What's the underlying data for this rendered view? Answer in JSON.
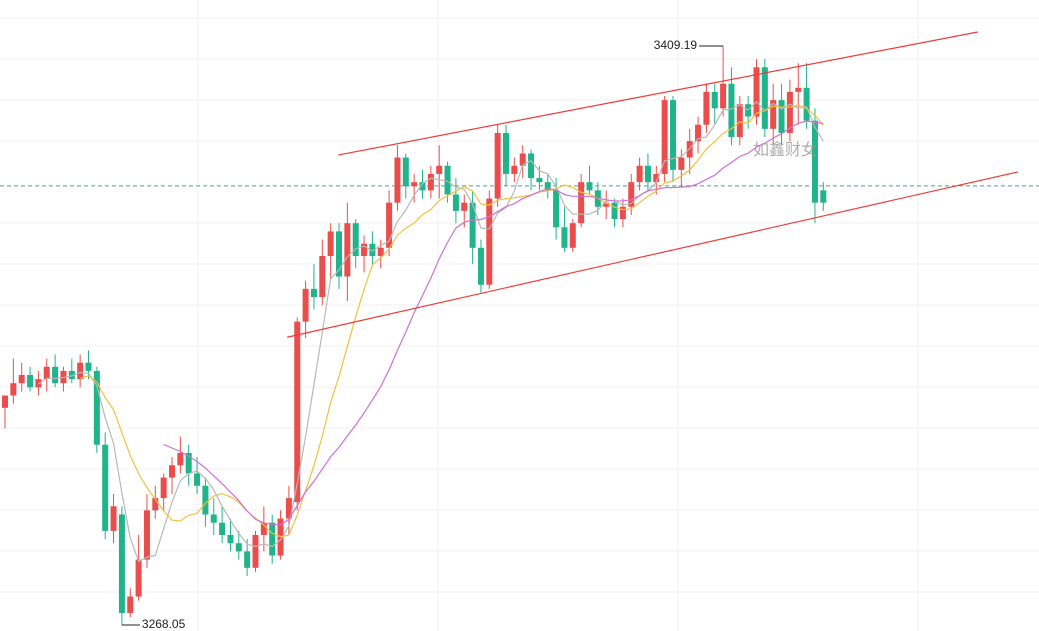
{
  "chart_data": {
    "type": "candlestick",
    "ylim": [
      3266.6,
      3420.4
    ],
    "up_color": "#eb4d4d",
    "down_color": "#1fb489",
    "open": [
      3321,
      3324,
      3327,
      3329,
      3326,
      3328,
      3331,
      3327,
      3330,
      3328,
      3332,
      3330,
      3312,
      3291,
      3295,
      3271,
      3275,
      3284,
      3296,
      3299,
      3304,
      3307,
      3310,
      3305,
      3302,
      3295,
      3293,
      3290,
      3288,
      3286,
      3282,
      3290,
      3293,
      3285,
      3294,
      3298,
      3342,
      3350,
      3348,
      3358,
      3364,
      3353,
      3366,
      3358,
      3361,
      3358,
      3360,
      3371,
      3382,
      3375,
      3376,
      3374,
      3378,
      3380,
      3373,
      3369,
      3371,
      3360,
      3351,
      3372,
      3388,
      3378,
      3380,
      3383,
      3377,
      3376,
      3374,
      3365,
      3360,
      3366,
      3376,
      3374,
      3370,
      3371,
      3367,
      3370,
      3376,
      3380,
      3376,
      3378,
      3396,
      3379,
      3382,
      3386,
      3390,
      3398,
      3394,
      3400,
      3387,
      3395,
      3392,
      3404,
      3389,
      3396,
      3388,
      3398,
      3399,
      3391,
      3374
    ],
    "high": [
      3324,
      3333,
      3332,
      3331,
      3330,
      3333,
      3334,
      3331,
      3333,
      3334,
      3335,
      3331,
      3315,
      3300,
      3297,
      3277,
      3290,
      3300,
      3302,
      3305,
      3309,
      3314,
      3312,
      3309,
      3304,
      3299,
      3297,
      3294,
      3291,
      3289,
      3291,
      3297,
      3295,
      3296,
      3302,
      3343,
      3352,
      3356,
      3362,
      3366,
      3366,
      3371,
      3367,
      3363,
      3364,
      3362,
      3374,
      3385,
      3383,
      3378,
      3379,
      3380,
      3385,
      3381,
      3377,
      3373,
      3374,
      3362,
      3374,
      3390,
      3390,
      3382,
      3385,
      3384,
      3380,
      3378,
      3377,
      3370,
      3367,
      3378,
      3380,
      3376,
      3374,
      3372,
      3372,
      3378,
      3382,
      3383,
      3380,
      3397,
      3397,
      3384,
      3389,
      3392,
      3400,
      3400,
      3409.19,
      3404,
      3397,
      3397,
      3406,
      3406,
      3400,
      3400,
      3401,
      3405,
      3405,
      3394,
      3376
    ],
    "low": [
      3316,
      3322,
      3325,
      3325,
      3324,
      3325,
      3326,
      3325,
      3327,
      3326,
      3328,
      3310,
      3289,
      3288,
      3268.05,
      3270,
      3274,
      3282,
      3294,
      3296,
      3300,
      3305,
      3302,
      3300,
      3292,
      3290,
      3288,
      3286,
      3284,
      3280,
      3281,
      3286,
      3283,
      3284,
      3290,
      3296,
      3338,
      3345,
      3346,
      3352,
      3350,
      3347,
      3355,
      3354,
      3356,
      3355,
      3358,
      3369,
      3372,
      3371,
      3372,
      3372,
      3372,
      3371,
      3366,
      3365,
      3356,
      3349,
      3350,
      3370,
      3375,
      3376,
      3377,
      3374,
      3374,
      3372,
      3362,
      3359,
      3359,
      3365,
      3373,
      3368,
      3367,
      3365,
      3365,
      3368,
      3374,
      3374,
      3373,
      3376,
      3376,
      3375,
      3378,
      3383,
      3388,
      3390,
      3392,
      3385,
      3385,
      3389,
      3390,
      3387,
      3385,
      3385,
      3386,
      3390,
      3389,
      3366,
      3369
    ],
    "close": [
      3324,
      3327,
      3329,
      3326,
      3328,
      3331,
      3327,
      3330,
      3328,
      3332,
      3330,
      3312,
      3291,
      3297,
      3271,
      3275,
      3284,
      3296,
      3299,
      3304,
      3307,
      3310,
      3305,
      3302,
      3295,
      3293,
      3290,
      3288,
      3286,
      3282,
      3290,
      3293,
      3285,
      3294,
      3299,
      3342,
      3350,
      3348,
      3358,
      3364,
      3353,
      3366,
      3358,
      3361,
      3358,
      3360,
      3371,
      3382,
      3375,
      3376,
      3374,
      3378,
      3380,
      3373,
      3369,
      3371,
      3360,
      3351,
      3372,
      3388,
      3378,
      3380,
      3383,
      3377,
      3376,
      3374,
      3365,
      3360,
      3366,
      3376,
      3374,
      3370,
      3371,
      3367,
      3370,
      3376,
      3380,
      3376,
      3378,
      3396,
      3379,
      3382,
      3386,
      3390,
      3398,
      3394,
      3400,
      3387,
      3395,
      3392,
      3404,
      3389,
      3396,
      3388,
      3398,
      3399,
      3391,
      3371,
      3371
    ],
    "moving_averages": [
      {
        "period": 5,
        "color": "#b8b8b8"
      },
      {
        "period": 10,
        "color": "#f0c040"
      },
      {
        "period": 20,
        "color": "#d070d8"
      }
    ],
    "high_label": "3409.19",
    "low_label": "3268.05",
    "price_line": 3375.1,
    "price_line_color": "#4aa39a",
    "trendlines": [
      {
        "color": "#f03a3a",
        "start": [
          39.9,
          3382.6
        ],
        "end": [
          116.5,
          3412.6
        ]
      },
      {
        "color": "#f03a3a",
        "start": [
          33.8,
          3338.2
        ],
        "end": [
          121.3,
          3378.5
        ]
      }
    ],
    "watermark": "如鑫财女"
  }
}
